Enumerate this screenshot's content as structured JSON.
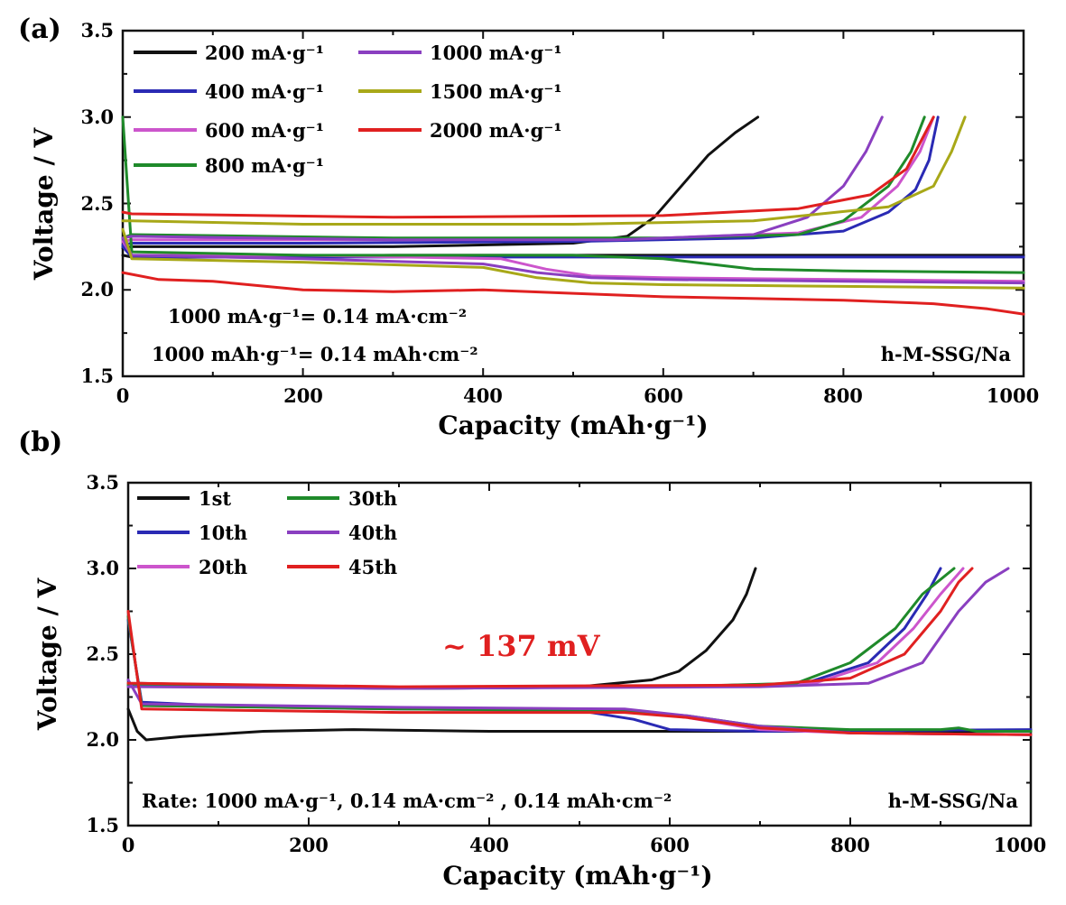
{
  "colors": {
    "black": "#111111",
    "blue": "#2a2ab4",
    "pink": "#cc55cc",
    "green": "#1f8a2a",
    "purple": "#8a3fc0",
    "olive": "#a8a818",
    "red": "#e02020"
  },
  "chart_data": [
    {
      "type": "line",
      "panel_label": "(a)",
      "xlabel": "Capacity (mAh·g⁻¹)",
      "ylabel": "Voltage / V",
      "xlim": [
        0,
        1000
      ],
      "ylim": [
        1.5,
        3.5
      ],
      "x_ticks": [
        "0",
        "200",
        "400",
        "600",
        "800",
        "1000"
      ],
      "y_ticks": [
        "1.5",
        "2.0",
        "2.5",
        "3.0",
        "3.5"
      ],
      "grid": false,
      "legend_position": "top-left",
      "annotations": [
        "1000 mA·g⁻¹= 0.14 mA·cm⁻²",
        "1000 mAh·g⁻¹= 0.14 mAh·cm⁻²",
        "h-M-SSG/Na"
      ],
      "series": [
        {
          "name": "200 mA·g⁻¹",
          "color": "black",
          "discharge": [
            [
              0,
              2.2
            ],
            [
              10,
              2.19
            ],
            [
              40,
              2.19
            ],
            [
              100,
              2.19
            ],
            [
              300,
              2.2
            ],
            [
              500,
              2.2
            ],
            [
              700,
              2.2
            ],
            [
              1000,
              2.2
            ]
          ],
          "charge": [
            [
              0,
              2.24
            ],
            [
              10,
              2.25
            ],
            [
              100,
              2.25
            ],
            [
              300,
              2.25
            ],
            [
              500,
              2.27
            ],
            [
              560,
              2.31
            ],
            [
              590,
              2.42
            ],
            [
              620,
              2.6
            ],
            [
              650,
              2.78
            ],
            [
              680,
              2.91
            ],
            [
              705,
              3.0
            ]
          ]
        },
        {
          "name": "400 mA·g⁻¹",
          "color": "blue",
          "discharge": [
            [
              0,
              2.25
            ],
            [
              10,
              2.19
            ],
            [
              100,
              2.19
            ],
            [
              300,
              2.19
            ],
            [
              600,
              2.19
            ],
            [
              1000,
              2.19
            ]
          ],
          "charge": [
            [
              0,
              2.26
            ],
            [
              10,
              2.27
            ],
            [
              200,
              2.27
            ],
            [
              500,
              2.28
            ],
            [
              700,
              2.3
            ],
            [
              800,
              2.34
            ],
            [
              850,
              2.45
            ],
            [
              880,
              2.58
            ],
            [
              895,
              2.75
            ],
            [
              905,
              3.0
            ]
          ]
        },
        {
          "name": "600 mA·g⁻¹",
          "color": "pink",
          "discharge": [
            [
              0,
              2.28
            ],
            [
              10,
              2.2
            ],
            [
              200,
              2.2
            ],
            [
              420,
              2.18
            ],
            [
              470,
              2.12
            ],
            [
              520,
              2.08
            ],
            [
              600,
              2.07
            ],
            [
              800,
              2.06
            ],
            [
              1000,
              2.05
            ]
          ],
          "charge": [
            [
              0,
              2.28
            ],
            [
              10,
              2.29
            ],
            [
              300,
              2.29
            ],
            [
              600,
              2.3
            ],
            [
              750,
              2.33
            ],
            [
              820,
              2.42
            ],
            [
              860,
              2.6
            ],
            [
              885,
              2.8
            ],
            [
              900,
              3.0
            ]
          ]
        },
        {
          "name": "800 mA·g⁻¹",
          "color": "green",
          "discharge": [
            [
              0,
              3.0
            ],
            [
              10,
              2.22
            ],
            [
              200,
              2.2
            ],
            [
              500,
              2.2
            ],
            [
              600,
              2.18
            ],
            [
              650,
              2.15
            ],
            [
              700,
              2.12
            ],
            [
              800,
              2.11
            ],
            [
              1000,
              2.1
            ]
          ],
          "charge": [
            [
              0,
              2.3
            ],
            [
              10,
              2.32
            ],
            [
              300,
              2.3
            ],
            [
              600,
              2.3
            ],
            [
              750,
              2.32
            ],
            [
              800,
              2.4
            ],
            [
              850,
              2.6
            ],
            [
              875,
              2.8
            ],
            [
              890,
              3.0
            ]
          ]
        },
        {
          "name": "1000 mA·g⁻¹",
          "color": "purple",
          "discharge": [
            [
              0,
              2.3
            ],
            [
              10,
              2.2
            ],
            [
              200,
              2.18
            ],
            [
              400,
              2.15
            ],
            [
              460,
              2.1
            ],
            [
              520,
              2.07
            ],
            [
              600,
              2.06
            ],
            [
              800,
              2.05
            ],
            [
              1000,
              2.04
            ]
          ],
          "charge": [
            [
              0,
              2.3
            ],
            [
              10,
              2.31
            ],
            [
              300,
              2.29
            ],
            [
              550,
              2.29
            ],
            [
              700,
              2.32
            ],
            [
              760,
              2.42
            ],
            [
              800,
              2.6
            ],
            [
              825,
              2.8
            ],
            [
              843,
              3.0
            ]
          ]
        },
        {
          "name": "1500 mA·g⁻¹",
          "color": "olive",
          "discharge": [
            [
              0,
              2.35
            ],
            [
              10,
              2.18
            ],
            [
              200,
              2.16
            ],
            [
              400,
              2.13
            ],
            [
              460,
              2.07
            ],
            [
              520,
              2.04
            ],
            [
              600,
              2.03
            ],
            [
              800,
              2.02
            ],
            [
              1000,
              2.01
            ]
          ],
          "charge": [
            [
              0,
              2.4
            ],
            [
              10,
              2.4
            ],
            [
              200,
              2.38
            ],
            [
              500,
              2.38
            ],
            [
              700,
              2.4
            ],
            [
              850,
              2.48
            ],
            [
              900,
              2.6
            ],
            [
              920,
              2.8
            ],
            [
              935,
              3.0
            ]
          ]
        },
        {
          "name": "2000 mA·g⁻¹",
          "color": "red",
          "discharge": [
            [
              0,
              2.1
            ],
            [
              40,
              2.06
            ],
            [
              100,
              2.05
            ],
            [
              200,
              2.0
            ],
            [
              300,
              1.99
            ],
            [
              400,
              2.0
            ],
            [
              500,
              1.98
            ],
            [
              600,
              1.96
            ],
            [
              800,
              1.94
            ],
            [
              900,
              1.92
            ],
            [
              960,
              1.89
            ],
            [
              1000,
              1.86
            ]
          ],
          "charge": [
            [
              0,
              2.45
            ],
            [
              10,
              2.44
            ],
            [
              300,
              2.42
            ],
            [
              600,
              2.43
            ],
            [
              750,
              2.47
            ],
            [
              830,
              2.55
            ],
            [
              870,
              2.7
            ],
            [
              890,
              2.9
            ],
            [
              900,
              3.0
            ]
          ]
        }
      ]
    },
    {
      "type": "line",
      "panel_label": "(b)",
      "xlabel": "Capacity (mAh·g⁻¹)",
      "ylabel": "Voltage / V",
      "xlim": [
        0,
        1000
      ],
      "ylim": [
        1.5,
        3.5
      ],
      "x_ticks": [
        "0",
        "200",
        "400",
        "600",
        "800",
        "1000"
      ],
      "y_ticks": [
        "1.5",
        "2.0",
        "2.5",
        "3.0",
        "3.5"
      ],
      "grid": false,
      "legend_position": "top-left",
      "annotations": [
        "~ 137 mV",
        "Rate:  1000 mA·g⁻¹, 0.14 mA·cm⁻² , 0.14 mAh·cm⁻²",
        "h-M-SSG/Na"
      ],
      "series": [
        {
          "name": "1st",
          "color": "black",
          "discharge": [
            [
              0,
              2.18
            ],
            [
              10,
              2.05
            ],
            [
              20,
              2.0
            ],
            [
              60,
              2.02
            ],
            [
              150,
              2.05
            ],
            [
              250,
              2.06
            ],
            [
              400,
              2.05
            ],
            [
              550,
              2.05
            ],
            [
              700,
              2.05
            ],
            [
              1000,
              2.05
            ]
          ],
          "charge": [
            [
              0,
              2.32
            ],
            [
              10,
              2.33
            ],
            [
              300,
              2.3
            ],
            [
              500,
              2.31
            ],
            [
              580,
              2.35
            ],
            [
              610,
              2.4
            ],
            [
              640,
              2.52
            ],
            [
              670,
              2.7
            ],
            [
              685,
              2.85
            ],
            [
              695,
              3.0
            ]
          ]
        },
        {
          "name": "10th",
          "color": "blue",
          "discharge": [
            [
              0,
              2.7
            ],
            [
              15,
              2.22
            ],
            [
              100,
              2.2
            ],
            [
              300,
              2.18
            ],
            [
              500,
              2.17
            ],
            [
              560,
              2.12
            ],
            [
              600,
              2.06
            ],
            [
              700,
              2.05
            ],
            [
              1000,
              2.06
            ]
          ],
          "charge": [
            [
              0,
              2.32
            ],
            [
              10,
              2.32
            ],
            [
              300,
              2.3
            ],
            [
              600,
              2.31
            ],
            [
              750,
              2.33
            ],
            [
              820,
              2.45
            ],
            [
              860,
              2.65
            ],
            [
              885,
              2.85
            ],
            [
              900,
              3.0
            ]
          ]
        },
        {
          "name": "20th",
          "color": "pink",
          "discharge": [
            [
              0,
              2.72
            ],
            [
              15,
              2.2
            ],
            [
              300,
              2.18
            ],
            [
              550,
              2.17
            ],
            [
              620,
              2.13
            ],
            [
              700,
              2.06
            ],
            [
              800,
              2.04
            ],
            [
              1000,
              2.03
            ]
          ],
          "charge": [
            [
              0,
              2.32
            ],
            [
              10,
              2.32
            ],
            [
              300,
              2.3
            ],
            [
              600,
              2.31
            ],
            [
              760,
              2.33
            ],
            [
              830,
              2.45
            ],
            [
              870,
              2.65
            ],
            [
              900,
              2.85
            ],
            [
              925,
              3.0
            ]
          ]
        },
        {
          "name": "30th",
          "color": "green",
          "discharge": [
            [
              0,
              2.72
            ],
            [
              15,
              2.2
            ],
            [
              300,
              2.18
            ],
            [
              550,
              2.17
            ],
            [
              620,
              2.14
            ],
            [
              700,
              2.08
            ],
            [
              800,
              2.06
            ],
            [
              900,
              2.06
            ],
            [
              920,
              2.07
            ],
            [
              940,
              2.05
            ],
            [
              1000,
              2.05
            ]
          ],
          "charge": [
            [
              0,
              2.32
            ],
            [
              10,
              2.32
            ],
            [
              300,
              2.3
            ],
            [
              600,
              2.31
            ],
            [
              740,
              2.33
            ],
            [
              800,
              2.45
            ],
            [
              850,
              2.65
            ],
            [
              880,
              2.85
            ],
            [
              915,
              3.0
            ]
          ]
        },
        {
          "name": "40th",
          "color": "purple",
          "discharge": [
            [
              0,
              2.35
            ],
            [
              15,
              2.21
            ],
            [
              300,
              2.19
            ],
            [
              550,
              2.18
            ],
            [
              620,
              2.14
            ],
            [
              700,
              2.08
            ],
            [
              800,
              2.04
            ],
            [
              1000,
              2.03
            ]
          ],
          "charge": [
            [
              0,
              2.31
            ],
            [
              10,
              2.31
            ],
            [
              300,
              2.3
            ],
            [
              700,
              2.31
            ],
            [
              820,
              2.33
            ],
            [
              880,
              2.45
            ],
            [
              920,
              2.75
            ],
            [
              950,
              2.92
            ],
            [
              975,
              3.0
            ]
          ]
        },
        {
          "name": "45th",
          "color": "red",
          "discharge": [
            [
              0,
              2.75
            ],
            [
              15,
              2.18
            ],
            [
              300,
              2.16
            ],
            [
              550,
              2.16
            ],
            [
              620,
              2.13
            ],
            [
              700,
              2.07
            ],
            [
              800,
              2.04
            ],
            [
              1000,
              2.03
            ]
          ],
          "charge": [
            [
              0,
              2.33
            ],
            [
              10,
              2.33
            ],
            [
              300,
              2.31
            ],
            [
              700,
              2.32
            ],
            [
              800,
              2.36
            ],
            [
              860,
              2.5
            ],
            [
              900,
              2.75
            ],
            [
              920,
              2.92
            ],
            [
              935,
              3.0
            ]
          ]
        }
      ]
    }
  ]
}
